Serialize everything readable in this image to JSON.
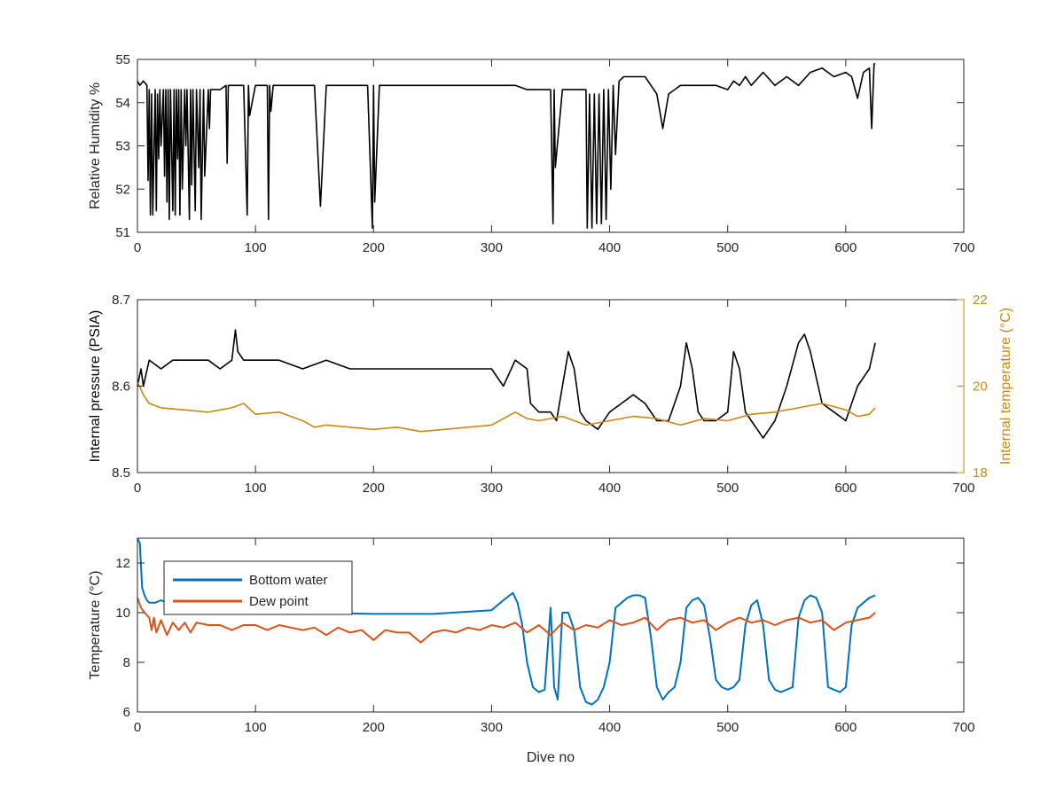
{
  "chart_data": [
    {
      "type": "line",
      "xlabel": "",
      "ylabel": "Relative Humidity %",
      "xlim": [
        0,
        700
      ],
      "ylim": [
        51,
        55
      ],
      "xticks": [
        0,
        100,
        200,
        300,
        400,
        500,
        600,
        700
      ],
      "yticks": [
        51,
        52,
        53,
        54,
        55
      ],
      "grid": false,
      "series": [
        {
          "color": "#000000",
          "x": [
            0,
            2,
            5,
            8,
            9,
            10,
            11,
            12,
            13,
            15,
            16,
            17,
            18,
            19,
            20,
            22,
            23,
            24,
            25,
            26,
            27,
            28,
            30,
            31,
            32,
            33,
            34,
            35,
            36,
            37,
            38,
            40,
            41,
            42,
            44,
            45,
            46,
            47,
            49,
            50,
            52,
            53,
            54,
            56,
            57,
            60,
            61,
            62,
            70,
            75,
            76,
            77,
            80,
            85,
            90,
            93,
            94,
            95,
            100,
            105,
            110,
            111,
            112,
            113,
            115,
            120,
            130,
            140,
            150,
            155,
            160,
            170,
            180,
            190,
            195,
            199,
            200,
            201,
            205,
            210,
            220,
            230,
            240,
            250,
            260,
            270,
            280,
            290,
            300,
            320,
            330,
            340,
            350,
            352,
            353,
            354,
            360,
            365,
            370,
            375,
            380,
            381,
            383,
            385,
            387,
            389,
            391,
            393,
            395,
            397,
            399,
            401,
            403,
            405,
            408,
            412,
            420,
            430,
            440,
            445,
            450,
            460,
            470,
            480,
            490,
            500,
            505,
            510,
            515,
            520,
            530,
            540,
            550,
            560,
            570,
            580,
            590,
            600,
            605,
            610,
            615,
            620,
            622,
            624,
            625
          ],
          "y": [
            54.5,
            54.4,
            54.5,
            54.4,
            52.2,
            54.3,
            51.4,
            54.2,
            51.4,
            54.3,
            51.5,
            54.2,
            52.7,
            54.3,
            53.0,
            54.3,
            52.3,
            54.3,
            51.7,
            54.3,
            51.3,
            54.3,
            51.5,
            54.3,
            51.4,
            54.3,
            52.7,
            54.3,
            51.4,
            54.3,
            52.0,
            54.3,
            53.0,
            54.3,
            51.3,
            54.3,
            52.1,
            54.3,
            51.5,
            54.3,
            52.5,
            54.3,
            51.3,
            54.3,
            52.3,
            54.3,
            53.4,
            54.3,
            54.3,
            54.4,
            52.6,
            54.4,
            54.4,
            54.4,
            54.4,
            51.4,
            54.4,
            53.7,
            54.4,
            54.4,
            54.4,
            51.3,
            54.4,
            53.8,
            54.4,
            54.4,
            54.4,
            54.4,
            54.4,
            51.6,
            54.4,
            54.4,
            54.4,
            54.4,
            54.4,
            51.1,
            54.4,
            51.7,
            54.4,
            54.4,
            54.4,
            54.4,
            54.4,
            54.4,
            54.4,
            54.4,
            54.4,
            54.4,
            54.4,
            54.4,
            54.3,
            54.3,
            54.3,
            51.2,
            54.3,
            52.5,
            54.3,
            54.3,
            54.3,
            54.3,
            54.3,
            51.1,
            54.2,
            51.1,
            54.2,
            51.2,
            54.2,
            51.2,
            54.3,
            51.3,
            54.3,
            52.0,
            54.4,
            52.8,
            54.5,
            54.6,
            54.6,
            54.6,
            54.2,
            53.4,
            54.2,
            54.4,
            54.4,
            54.4,
            54.4,
            54.3,
            54.5,
            54.4,
            54.6,
            54.4,
            54.7,
            54.4,
            54.6,
            54.4,
            54.7,
            54.8,
            54.6,
            54.7,
            54.6,
            54.1,
            54.7,
            54.8,
            53.4,
            54.9,
            54.9
          ]
        }
      ]
    },
    {
      "type": "line",
      "xlabel": "",
      "ylabel": "Internal pressure (PSIA)",
      "ylabel_right": "Internal temperature (°C)",
      "xlim": [
        0,
        700
      ],
      "ylim": [
        8.5,
        8.7
      ],
      "ylim_right": [
        18,
        22
      ],
      "xticks": [
        0,
        100,
        200,
        300,
        400,
        500,
        600,
        700
      ],
      "yticks": [
        8.5,
        8.6,
        8.7
      ],
      "yticks_right": [
        18,
        20,
        22
      ],
      "tick_labels": [
        "8.5",
        "8.6",
        "8.7"
      ],
      "grid": false,
      "series": [
        {
          "axis": "left",
          "color": "#000000",
          "x": [
            0,
            3,
            5,
            10,
            20,
            30,
            40,
            50,
            60,
            70,
            80,
            83,
            85,
            90,
            100,
            120,
            140,
            160,
            180,
            200,
            220,
            240,
            260,
            280,
            300,
            310,
            320,
            330,
            333,
            340,
            350,
            355,
            360,
            365,
            370,
            375,
            380,
            390,
            400,
            410,
            420,
            430,
            440,
            450,
            460,
            465,
            470,
            475,
            480,
            490,
            500,
            505,
            510,
            515,
            520,
            525,
            530,
            540,
            550,
            560,
            565,
            570,
            580,
            590,
            600,
            610,
            620,
            625
          ],
          "y": [
            8.6,
            8.62,
            8.6,
            8.63,
            8.62,
            8.63,
            8.63,
            8.63,
            8.63,
            8.62,
            8.63,
            8.665,
            8.64,
            8.63,
            8.63,
            8.63,
            8.62,
            8.63,
            8.62,
            8.62,
            8.62,
            8.62,
            8.62,
            8.62,
            8.62,
            8.6,
            8.63,
            8.62,
            8.58,
            8.57,
            8.57,
            8.56,
            8.6,
            8.64,
            8.62,
            8.57,
            8.56,
            8.55,
            8.57,
            8.58,
            8.59,
            8.58,
            8.56,
            8.56,
            8.6,
            8.65,
            8.62,
            8.57,
            8.56,
            8.56,
            8.57,
            8.64,
            8.62,
            8.57,
            8.56,
            8.55,
            8.54,
            8.56,
            8.6,
            8.65,
            8.66,
            8.64,
            8.58,
            8.57,
            8.56,
            8.6,
            8.62,
            8.65
          ]
        },
        {
          "axis": "right",
          "color": "#C58A12",
          "x": [
            0,
            5,
            10,
            20,
            40,
            60,
            80,
            90,
            100,
            120,
            140,
            150,
            160,
            180,
            200,
            220,
            240,
            260,
            280,
            300,
            320,
            330,
            340,
            360,
            380,
            400,
            420,
            440,
            460,
            480,
            500,
            520,
            540,
            560,
            580,
            600,
            610,
            620,
            625
          ],
          "y": [
            20.1,
            19.8,
            19.6,
            19.5,
            19.45,
            19.4,
            19.5,
            19.6,
            19.35,
            19.4,
            19.2,
            19.05,
            19.1,
            19.05,
            19.0,
            19.05,
            18.95,
            19.0,
            19.05,
            19.1,
            19.4,
            19.25,
            19.2,
            19.3,
            19.1,
            19.2,
            19.3,
            19.25,
            19.1,
            19.25,
            19.2,
            19.35,
            19.4,
            19.5,
            19.6,
            19.45,
            19.3,
            19.35,
            19.5
          ]
        }
      ]
    },
    {
      "type": "line",
      "xlabel": "Dive no",
      "ylabel": "Temperature (°C)",
      "xlim": [
        0,
        700
      ],
      "ylim": [
        6,
        13
      ],
      "xticks": [
        0,
        100,
        200,
        300,
        400,
        500,
        600,
        700
      ],
      "yticks": [
        6,
        8,
        10,
        12
      ],
      "grid": false,
      "legend": "top-left",
      "series": [
        {
          "name": "Bottom water",
          "color": "#0072BD",
          "x": [
            0,
            2,
            4,
            6,
            8,
            10,
            15,
            20,
            30,
            50,
            100,
            150,
            200,
            250,
            300,
            310,
            318,
            322,
            326,
            330,
            335,
            340,
            345,
            350,
            353,
            356,
            360,
            365,
            370,
            375,
            380,
            385,
            390,
            395,
            400,
            405,
            410,
            415,
            420,
            425,
            430,
            435,
            440,
            445,
            450,
            455,
            460,
            465,
            470,
            475,
            480,
            485,
            490,
            495,
            500,
            505,
            510,
            515,
            520,
            525,
            530,
            535,
            540,
            545,
            550,
            555,
            560,
            565,
            570,
            575,
            580,
            585,
            590,
            595,
            600,
            605,
            610,
            615,
            620,
            625
          ],
          "y": [
            13.0,
            12.8,
            11.0,
            10.7,
            10.5,
            10.4,
            10.4,
            10.5,
            10.3,
            10.2,
            10.1,
            10.0,
            9.95,
            9.95,
            10.1,
            10.5,
            10.8,
            10.4,
            9.5,
            8.0,
            7.0,
            6.8,
            6.9,
            10.2,
            7.0,
            6.5,
            10.0,
            10.0,
            9.3,
            7.0,
            6.4,
            6.3,
            6.5,
            7.0,
            8.0,
            10.2,
            10.4,
            10.6,
            10.7,
            10.7,
            10.6,
            9.0,
            7.0,
            6.5,
            6.8,
            7.0,
            8.0,
            10.2,
            10.5,
            10.6,
            10.3,
            9.0,
            7.3,
            7.0,
            6.9,
            7.0,
            7.3,
            9.5,
            10.3,
            10.5,
            9.5,
            7.3,
            6.9,
            6.8,
            6.9,
            7.0,
            9.8,
            10.5,
            10.7,
            10.6,
            10.0,
            7.0,
            6.9,
            6.8,
            7.0,
            9.5,
            10.2,
            10.4,
            10.6,
            10.7
          ]
        },
        {
          "name": "Dew point",
          "color": "#D95319",
          "x": [
            0,
            3,
            6,
            10,
            12,
            14,
            16,
            20,
            25,
            30,
            35,
            40,
            45,
            50,
            60,
            70,
            80,
            90,
            100,
            110,
            120,
            130,
            140,
            150,
            160,
            170,
            180,
            190,
            200,
            210,
            220,
            230,
            240,
            250,
            260,
            270,
            280,
            290,
            300,
            310,
            320,
            330,
            340,
            350,
            360,
            370,
            380,
            390,
            400,
            410,
            420,
            430,
            440,
            450,
            460,
            470,
            480,
            490,
            500,
            510,
            520,
            530,
            540,
            550,
            560,
            570,
            580,
            590,
            600,
            610,
            620,
            625
          ],
          "y": [
            10.6,
            10.2,
            10.0,
            9.8,
            9.3,
            9.8,
            9.2,
            9.7,
            9.1,
            9.6,
            9.3,
            9.6,
            9.2,
            9.6,
            9.5,
            9.5,
            9.3,
            9.5,
            9.5,
            9.3,
            9.5,
            9.4,
            9.3,
            9.4,
            9.1,
            9.4,
            9.2,
            9.3,
            8.9,
            9.3,
            9.2,
            9.2,
            8.8,
            9.2,
            9.3,
            9.2,
            9.4,
            9.3,
            9.5,
            9.4,
            9.6,
            9.2,
            9.5,
            9.1,
            9.6,
            9.3,
            9.5,
            9.4,
            9.7,
            9.5,
            9.6,
            9.8,
            9.3,
            9.7,
            9.8,
            9.6,
            9.7,
            9.3,
            9.6,
            9.8,
            9.6,
            9.7,
            9.5,
            9.7,
            9.8,
            9.6,
            9.7,
            9.3,
            9.6,
            9.7,
            9.8,
            10.0
          ]
        }
      ]
    }
  ]
}
